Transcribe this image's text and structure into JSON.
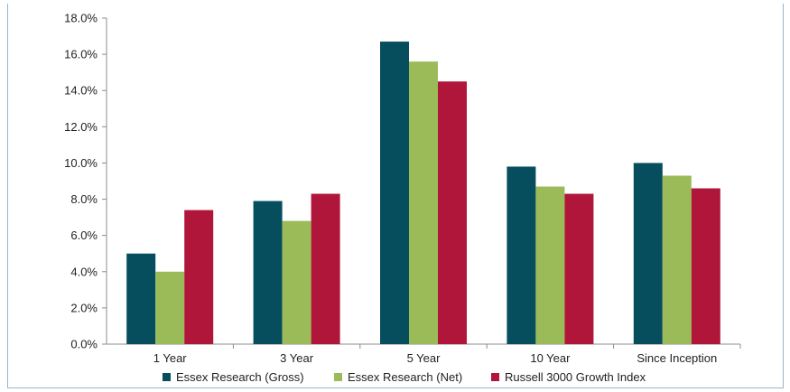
{
  "chart_data": {
    "type": "bar",
    "title": "",
    "xlabel": "",
    "ylabel": "",
    "ylim": [
      0,
      18
    ],
    "y_tick_step": 2,
    "y_tick_format": "percent_1dp",
    "grid": false,
    "legend_position": "bottom",
    "categories": [
      "1 Year",
      "3 Year",
      "5 Year",
      "10 Year",
      "Since Inception"
    ],
    "series": [
      {
        "name": "Essex Research (Gross)",
        "color": "#064e5e",
        "values": [
          5.0,
          7.9,
          16.7,
          9.8,
          10.0
        ]
      },
      {
        "name": "Essex Research (Net)",
        "color": "#9bbb59",
        "values": [
          4.0,
          6.8,
          15.6,
          8.7,
          9.3
        ]
      },
      {
        "name": "Russell 3000 Growth Index",
        "color": "#b0163a",
        "values": [
          7.4,
          8.3,
          14.5,
          8.3,
          8.6
        ]
      }
    ],
    "y_tick_labels": [
      "0.0%",
      "2.0%",
      "4.0%",
      "6.0%",
      "8.0%",
      "10.0%",
      "12.0%",
      "14.0%",
      "16.0%",
      "18.0%"
    ]
  }
}
